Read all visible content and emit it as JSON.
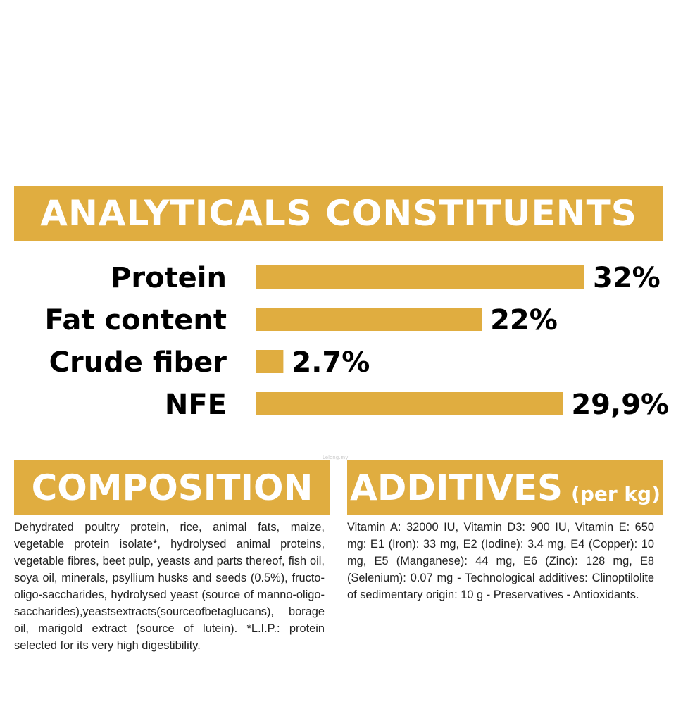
{
  "analytics": {
    "title": "ANALYTICALS CONSTITUENTS"
  },
  "chart_data": {
    "type": "bar",
    "orientation": "horizontal",
    "categories": [
      "Protein",
      "Fat content",
      "Crude fiber",
      "NFE"
    ],
    "values": [
      32,
      22,
      2.7,
      29.9
    ],
    "value_labels": [
      "32%",
      "22%",
      "2.7%",
      "29,9%"
    ],
    "xlim": [
      0,
      32
    ],
    "bar_color": "#e0ad40",
    "grid": false
  },
  "composition": {
    "title": "COMPOSITION",
    "text": "Dehydrated poultry protein, rice, animal fats, maize, vegetable protein isolate*, hydrolysed animal proteins, vegetable fibres, beet pulp, yeasts and parts thereof, fish oil, soya oil, minerals, psyllium husks and seeds (0.5%), fructo-oligo-saccharides, hydrolysed yeast (source of manno-oligo-saccharides),yeastsextracts(sourceofbetaglucans), borage oil, marigold extract (source of lutein). *L.I.P.: protein selected for its very high digestibility."
  },
  "additives": {
    "title": "ADDITIVES",
    "unit": "(per kg)",
    "text": "Vitamin A: 32000 IU, Vitamin D3: 900 IU, Vitamin E: 650 mg: E1 (Iron): 33 mg, E2 (Iodine): 3.4 mg, E4 (Copper): 10 mg, E5 (Manganese): 44 mg, E6 (Zinc): 128 mg, E8 (Selenium): 0.07 mg - Technological additives: Clinoptilolite of sedimentary origin: 10 g - Preservatives - Antioxidants."
  },
  "watermark": "Lelong.my"
}
